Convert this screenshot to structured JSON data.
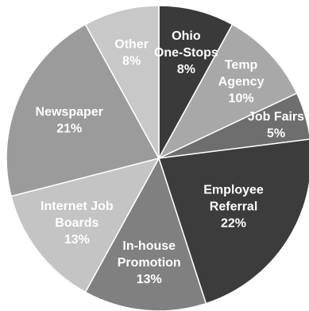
{
  "chart_data": {
    "type": "pie",
    "title": "",
    "start_angle_deg": 0,
    "direction": "clockwise",
    "slices": [
      {
        "label_lines": [
          "Ohio",
          "One-Stops"
        ],
        "value_label": "8%",
        "value": 8,
        "color": "#3a3a3a"
      },
      {
        "label_lines": [
          "Temp",
          "Agency"
        ],
        "value_label": "10%",
        "value": 10,
        "color": "#a8a8a8"
      },
      {
        "label_lines": [
          "Job Fairs"
        ],
        "value_label": "5%",
        "value": 5,
        "color": "#6e6e6e"
      },
      {
        "label_lines": [
          "Employee",
          "Referral"
        ],
        "value_label": "22%",
        "value": 22,
        "color": "#3c3c3c"
      },
      {
        "label_lines": [
          "In-house",
          "Promotion"
        ],
        "value_label": "13%",
        "value": 13,
        "color": "#808080"
      },
      {
        "label_lines": [
          "Internet Job",
          "Boards"
        ],
        "value_label": "13%",
        "value": 13,
        "color": "#c4c4c4"
      },
      {
        "label_lines": [
          "Newspaper"
        ],
        "value_label": "21%",
        "value": 21,
        "color": "#9b9b9b"
      },
      {
        "label_lines": [
          "Other"
        ],
        "value_label": "8%",
        "value": 8,
        "color": "#c8c8c8"
      }
    ]
  }
}
